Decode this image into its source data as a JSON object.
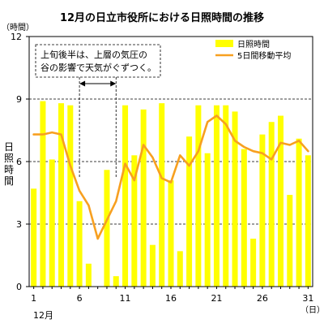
{
  "chart_data": {
    "type": "bar",
    "title": "12月の日立市役所における日照時間の推移",
    "ylabel": "日照時間",
    "y_unit_label": "（時間）",
    "x_unit_label": "（日）",
    "month_label": "12月",
    "ylim": [
      0,
      12
    ],
    "yticks": [
      0,
      3,
      6,
      9,
      12
    ],
    "xticks": [
      1,
      6,
      11,
      16,
      21,
      26,
      31
    ],
    "grid": "dashed horizontal at 3, 6, 9",
    "legend_position": "top-right",
    "colors": {
      "bars": "#ffff00",
      "line": "#f7a020",
      "grid": "#000000"
    },
    "x": [
      1,
      2,
      3,
      4,
      5,
      6,
      7,
      8,
      9,
      10,
      11,
      12,
      13,
      14,
      15,
      16,
      17,
      18,
      19,
      20,
      21,
      22,
      23,
      24,
      25,
      26,
      27,
      28,
      29,
      30,
      31
    ],
    "series": [
      {
        "name": "日照時間",
        "type": "bar",
        "values": [
          4.7,
          8.9,
          6.1,
          8.8,
          8.7,
          4.1,
          1.1,
          0,
          5.6,
          0.5,
          8.7,
          6.3,
          8.5,
          2.0,
          8.8,
          5.1,
          1.7,
          7.2,
          8.7,
          6.4,
          8.7,
          8.7,
          8.4,
          6.6,
          2.3,
          7.3,
          7.9,
          8.2,
          4.4,
          7.1,
          6.3
        ]
      },
      {
        "name": "5日間移動平均",
        "type": "line",
        "values": [
          7.3,
          7.3,
          7.4,
          7.3,
          5.8,
          4.6,
          3.9,
          2.3,
          3.2,
          4.1,
          5.9,
          5.1,
          6.8,
          6.2,
          5.2,
          5.0,
          6.3,
          5.8,
          6.5,
          7.9,
          8.2,
          7.8,
          7.0,
          6.7,
          6.5,
          6.4,
          6.1,
          6.9,
          6.8,
          7.0,
          6.5
        ]
      }
    ],
    "annotation": {
      "lines": [
        "上旬後半は、上層の気圧の",
        "谷の影響で天気がぐずつく。"
      ],
      "range": [
        6,
        10
      ]
    }
  }
}
